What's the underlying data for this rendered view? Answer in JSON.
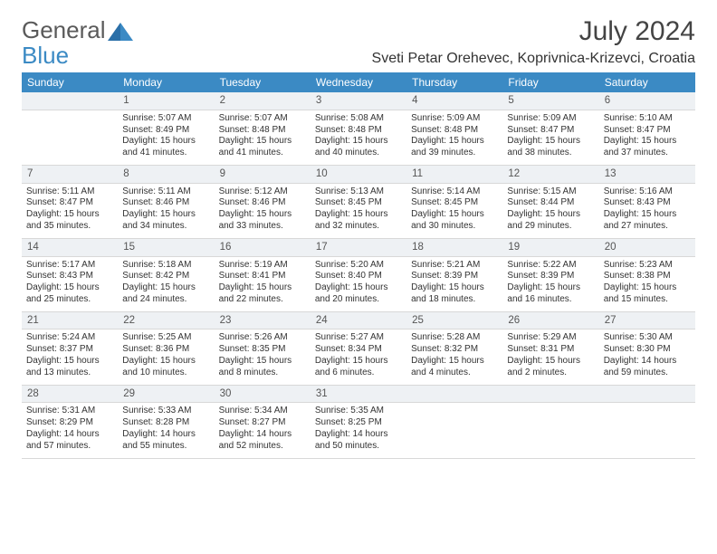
{
  "logo": {
    "text_general": "General",
    "text_blue": "Blue"
  },
  "title": "July 2024",
  "location": "Sveti Petar Orehevec, Koprivnica-Krizevci, Croatia",
  "colors": {
    "header_bg": "#3b8ac4",
    "header_fg": "#ffffff",
    "daynum_bg": "#eef1f4",
    "daynum_fg": "#555555",
    "body_fg": "#333333",
    "border": "#d8d8d8",
    "logo_accent": "#3b8ac4",
    "logo_gray": "#5a5a5a"
  },
  "weekdays": [
    "Sunday",
    "Monday",
    "Tuesday",
    "Wednesday",
    "Thursday",
    "Friday",
    "Saturday"
  ],
  "weeks": [
    {
      "nums": [
        "",
        "1",
        "2",
        "3",
        "4",
        "5",
        "6"
      ],
      "cells": [
        [],
        [
          "Sunrise: 5:07 AM",
          "Sunset: 8:49 PM",
          "Daylight: 15 hours and 41 minutes."
        ],
        [
          "Sunrise: 5:07 AM",
          "Sunset: 8:48 PM",
          "Daylight: 15 hours and 41 minutes."
        ],
        [
          "Sunrise: 5:08 AM",
          "Sunset: 8:48 PM",
          "Daylight: 15 hours and 40 minutes."
        ],
        [
          "Sunrise: 5:09 AM",
          "Sunset: 8:48 PM",
          "Daylight: 15 hours and 39 minutes."
        ],
        [
          "Sunrise: 5:09 AM",
          "Sunset: 8:47 PM",
          "Daylight: 15 hours and 38 minutes."
        ],
        [
          "Sunrise: 5:10 AM",
          "Sunset: 8:47 PM",
          "Daylight: 15 hours and 37 minutes."
        ]
      ]
    },
    {
      "nums": [
        "7",
        "8",
        "9",
        "10",
        "11",
        "12",
        "13"
      ],
      "cells": [
        [
          "Sunrise: 5:11 AM",
          "Sunset: 8:47 PM",
          "Daylight: 15 hours and 35 minutes."
        ],
        [
          "Sunrise: 5:11 AM",
          "Sunset: 8:46 PM",
          "Daylight: 15 hours and 34 minutes."
        ],
        [
          "Sunrise: 5:12 AM",
          "Sunset: 8:46 PM",
          "Daylight: 15 hours and 33 minutes."
        ],
        [
          "Sunrise: 5:13 AM",
          "Sunset: 8:45 PM",
          "Daylight: 15 hours and 32 minutes."
        ],
        [
          "Sunrise: 5:14 AM",
          "Sunset: 8:45 PM",
          "Daylight: 15 hours and 30 minutes."
        ],
        [
          "Sunrise: 5:15 AM",
          "Sunset: 8:44 PM",
          "Daylight: 15 hours and 29 minutes."
        ],
        [
          "Sunrise: 5:16 AM",
          "Sunset: 8:43 PM",
          "Daylight: 15 hours and 27 minutes."
        ]
      ]
    },
    {
      "nums": [
        "14",
        "15",
        "16",
        "17",
        "18",
        "19",
        "20"
      ],
      "cells": [
        [
          "Sunrise: 5:17 AM",
          "Sunset: 8:43 PM",
          "Daylight: 15 hours and 25 minutes."
        ],
        [
          "Sunrise: 5:18 AM",
          "Sunset: 8:42 PM",
          "Daylight: 15 hours and 24 minutes."
        ],
        [
          "Sunrise: 5:19 AM",
          "Sunset: 8:41 PM",
          "Daylight: 15 hours and 22 minutes."
        ],
        [
          "Sunrise: 5:20 AM",
          "Sunset: 8:40 PM",
          "Daylight: 15 hours and 20 minutes."
        ],
        [
          "Sunrise: 5:21 AM",
          "Sunset: 8:39 PM",
          "Daylight: 15 hours and 18 minutes."
        ],
        [
          "Sunrise: 5:22 AM",
          "Sunset: 8:39 PM",
          "Daylight: 15 hours and 16 minutes."
        ],
        [
          "Sunrise: 5:23 AM",
          "Sunset: 8:38 PM",
          "Daylight: 15 hours and 15 minutes."
        ]
      ]
    },
    {
      "nums": [
        "21",
        "22",
        "23",
        "24",
        "25",
        "26",
        "27"
      ],
      "cells": [
        [
          "Sunrise: 5:24 AM",
          "Sunset: 8:37 PM",
          "Daylight: 15 hours and 13 minutes."
        ],
        [
          "Sunrise: 5:25 AM",
          "Sunset: 8:36 PM",
          "Daylight: 15 hours and 10 minutes."
        ],
        [
          "Sunrise: 5:26 AM",
          "Sunset: 8:35 PM",
          "Daylight: 15 hours and 8 minutes."
        ],
        [
          "Sunrise: 5:27 AM",
          "Sunset: 8:34 PM",
          "Daylight: 15 hours and 6 minutes."
        ],
        [
          "Sunrise: 5:28 AM",
          "Sunset: 8:32 PM",
          "Daylight: 15 hours and 4 minutes."
        ],
        [
          "Sunrise: 5:29 AM",
          "Sunset: 8:31 PM",
          "Daylight: 15 hours and 2 minutes."
        ],
        [
          "Sunrise: 5:30 AM",
          "Sunset: 8:30 PM",
          "Daylight: 14 hours and 59 minutes."
        ]
      ]
    },
    {
      "nums": [
        "28",
        "29",
        "30",
        "31",
        "",
        "",
        ""
      ],
      "cells": [
        [
          "Sunrise: 5:31 AM",
          "Sunset: 8:29 PM",
          "Daylight: 14 hours and 57 minutes."
        ],
        [
          "Sunrise: 5:33 AM",
          "Sunset: 8:28 PM",
          "Daylight: 14 hours and 55 minutes."
        ],
        [
          "Sunrise: 5:34 AM",
          "Sunset: 8:27 PM",
          "Daylight: 14 hours and 52 minutes."
        ],
        [
          "Sunrise: 5:35 AM",
          "Sunset: 8:25 PM",
          "Daylight: 14 hours and 50 minutes."
        ],
        [],
        [],
        []
      ]
    }
  ]
}
